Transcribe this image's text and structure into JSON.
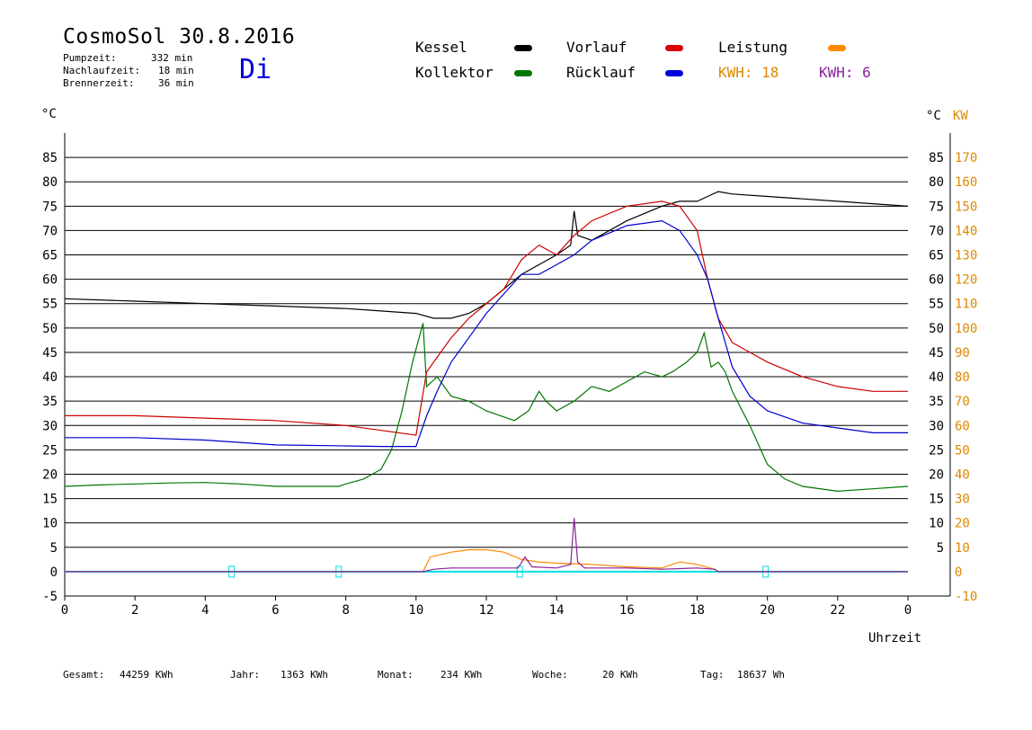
{
  "header": {
    "title": "CosmoSol 30.8.2016",
    "day": "Di",
    "pumpzeit_label": "Pumpzeit:",
    "pumpzeit_value": "332 min",
    "nachlaufzeit_label": "Nachlaufzeit:",
    "nachlaufzeit_value": "18 min",
    "brennerzeit_label": "Brennerzeit:",
    "brennerzeit_value": "36 min"
  },
  "legend": {
    "kessel": "Kessel",
    "kollektor": "Kollektor",
    "vorlauf": "Vorlauf",
    "ruecklauf": "Rücklauf",
    "leistung": "Leistung",
    "kwh1": "KWH: 18",
    "kwh2": "KWH: 6"
  },
  "axis": {
    "left_unit": "°C",
    "right_unit_c": "°C",
    "right_unit_kw": "KW",
    "xlabel": "Uhrzeit"
  },
  "footer": {
    "gesamt_label": "Gesamt:",
    "gesamt_value": "44259 KWh",
    "jahr_label": "Jahr:",
    "jahr_value": "1363 KWh",
    "monat_label": "Monat:",
    "monat_value": "234 KWh",
    "woche_label": "Woche:",
    "woche_value": "20 KWh",
    "tag_label": "Tag:",
    "tag_value": "18637 Wh"
  },
  "chart_data": {
    "type": "line",
    "title": "CosmoSol 30.8.2016",
    "xlabel": "Uhrzeit",
    "ylabel": "°C",
    "y2label": "KW",
    "xlim": [
      0,
      24
    ],
    "ylim": [
      -5,
      90
    ],
    "y2lim": [
      -10,
      180
    ],
    "x_ticks": [
      "0",
      "2",
      "4",
      "6",
      "8",
      "10",
      "12",
      "14",
      "16",
      "18",
      "20",
      "22",
      "0"
    ],
    "y_ticks_left": [
      "-5",
      "0",
      "5",
      "10",
      "15",
      "20",
      "25",
      "30",
      "35",
      "40",
      "45",
      "50",
      "55",
      "60",
      "65",
      "70",
      "75",
      "80",
      "85"
    ],
    "y_ticks_right_c": [
      "5",
      "10",
      "15",
      "20",
      "25",
      "30",
      "35",
      "40",
      "45",
      "50",
      "55",
      "60",
      "65",
      "70",
      "75",
      "80",
      "85"
    ],
    "y_ticks_right_kw": [
      "-10",
      "0",
      "10",
      "20",
      "30",
      "40",
      "50",
      "60",
      "70",
      "80",
      "90",
      "100",
      "110",
      "120",
      "130",
      "140",
      "150",
      "160",
      "170"
    ],
    "grid": true,
    "colors": {
      "kessel": "#000000",
      "kollektor": "#007700",
      "vorlauf": "#cc0000",
      "ruecklauf": "#0000cc",
      "leistung": "#ff8800",
      "kwh2": "#882299",
      "baseline": "#00e0e0",
      "kw_axis": "#dd8800"
    },
    "series": [
      {
        "name": "Kessel",
        "color": "#000000",
        "x": [
          0,
          2,
          4,
          6,
          8,
          9,
          10,
          10.5,
          11,
          11.5,
          12,
          12.5,
          13,
          13.5,
          14,
          14.4,
          14.5,
          14.6,
          15,
          16,
          17,
          17.5,
          18,
          18.3,
          18.6,
          19,
          20,
          21,
          22,
          23,
          24
        ],
        "y": [
          56,
          55.5,
          55,
          54.5,
          54,
          53.5,
          53,
          52,
          52,
          53,
          55,
          58,
          61,
          63,
          65,
          67,
          74,
          69,
          68,
          72,
          75,
          76,
          76,
          77,
          78,
          77.5,
          77,
          76.5,
          76,
          75.5,
          75
        ]
      },
      {
        "name": "Kollektor",
        "color": "#007700",
        "x": [
          0,
          1,
          2,
          3,
          4,
          5,
          6,
          7,
          7.8,
          8,
          8.5,
          9,
          9.3,
          9.6,
          9.9,
          10.2,
          10.3,
          10.6,
          11,
          11.5,
          12,
          12.4,
          12.8,
          13.2,
          13.5,
          13.7,
          14,
          14.5,
          15,
          15.5,
          16,
          16.5,
          17,
          17.3,
          17.7,
          18,
          18.2,
          18.4,
          18.6,
          18.8,
          19,
          19.5,
          20,
          20.5,
          21,
          22,
          23,
          24
        ],
        "y": [
          17.5,
          17.8,
          18,
          18.2,
          18.3,
          18,
          17.5,
          17.5,
          17.5,
          18,
          19,
          21,
          25,
          33,
          43,
          51,
          38,
          40,
          36,
          35,
          33,
          32,
          31,
          33,
          37,
          35,
          33,
          35,
          38,
          37,
          39,
          41,
          40,
          41,
          43,
          45,
          49,
          42,
          43,
          41,
          37,
          30,
          22,
          19,
          17.5,
          16.5,
          17,
          17.5
        ]
      },
      {
        "name": "Vorlauf",
        "color": "#cc0000",
        "x": [
          0,
          2,
          4,
          6,
          8,
          9,
          10,
          10.3,
          10.6,
          11,
          11.5,
          12,
          12.5,
          13,
          13.5,
          14,
          14.5,
          15,
          16,
          17,
          17.5,
          18,
          18.3,
          18.6,
          19,
          19.5,
          20,
          21,
          22,
          23,
          24
        ],
        "y": [
          32,
          32,
          31.5,
          31,
          30,
          29,
          28,
          41,
          44,
          48,
          52,
          55,
          58,
          64,
          67,
          65,
          69,
          72,
          75,
          76,
          75,
          70,
          60,
          52,
          47,
          45,
          43,
          40,
          38,
          37,
          37
        ]
      },
      {
        "name": "Rücklauf",
        "color": "#0000cc",
        "x": [
          0,
          2,
          4,
          6,
          8,
          9,
          10,
          10.3,
          10.6,
          11,
          11.5,
          12,
          12.5,
          13,
          13.5,
          14,
          14.5,
          15,
          16,
          17,
          17.5,
          18,
          18.3,
          18.6,
          19,
          19.5,
          20,
          21,
          22,
          23,
          24
        ],
        "y": [
          27.5,
          27.5,
          27,
          26,
          25.8,
          25.7,
          25.7,
          32,
          37,
          43,
          48,
          53,
          57,
          61,
          61,
          63,
          65,
          68,
          71,
          72,
          70,
          65,
          60,
          52,
          42,
          36,
          33,
          30.5,
          29.5,
          28.5,
          28.5
        ]
      },
      {
        "name": "Leistung",
        "color": "#ff8800",
        "axis": "kw",
        "x": [
          0,
          10.2,
          10.4,
          11,
          11.5,
          12,
          12.5,
          13,
          13.5,
          14,
          15,
          16,
          17,
          17.5,
          18,
          18.5,
          18.6,
          24
        ],
        "y": [
          0,
          0,
          6,
          8,
          9,
          9,
          8,
          5,
          4,
          3.5,
          3,
          2,
          1.5,
          4,
          3,
          1,
          0,
          0
        ]
      },
      {
        "name": "KWH: 6",
        "color": "#882299",
        "axis": "kw",
        "x": [
          0,
          10.2,
          10.5,
          11,
          12,
          12.9,
          13.1,
          13.3,
          14,
          14.4,
          14.5,
          14.6,
          14.8,
          16,
          17,
          18,
          18.5,
          18.6,
          24
        ],
        "y": [
          0,
          0,
          1,
          1.5,
          1.5,
          1.5,
          6,
          2,
          1.5,
          3,
          22,
          4,
          1.5,
          1.5,
          1,
          1.5,
          1,
          0,
          0
        ]
      }
    ]
  }
}
